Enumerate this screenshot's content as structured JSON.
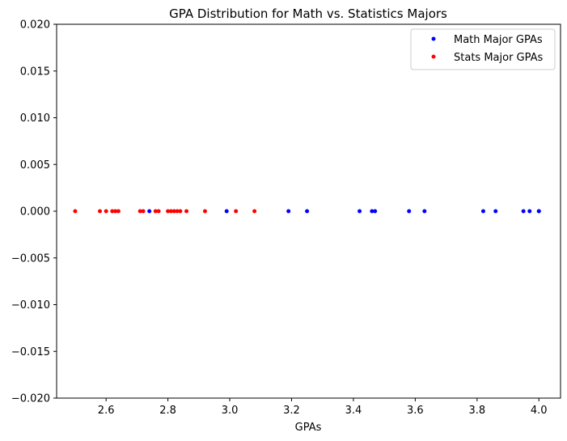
{
  "chart_data": {
    "type": "scatter",
    "title": "GPA Distribution for Math vs. Statistics Majors",
    "xlabel": "GPAs",
    "ylabel": "",
    "xlim": [
      2.44,
      4.07
    ],
    "ylim": [
      -0.02,
      0.02
    ],
    "x_ticks": [
      2.6,
      2.8,
      3.0,
      3.2,
      3.4,
      3.6,
      3.8,
      4.0
    ],
    "x_tick_labels": [
      "2.6",
      "2.8",
      "3.0",
      "3.2",
      "3.4",
      "3.6",
      "3.8",
      "4.0"
    ],
    "y_ticks": [
      0.02,
      0.015,
      0.01,
      0.005,
      0.0,
      -0.005,
      -0.01,
      -0.015,
      -0.02
    ],
    "y_tick_labels": [
      "0.020",
      "0.015",
      "0.010",
      "0.005",
      "0.000",
      "−0.005",
      "−0.010",
      "−0.015",
      "−0.020"
    ],
    "grid": false,
    "legend_position": "top-right",
    "series": [
      {
        "name": "Math Major GPAs",
        "color": "#0000ff",
        "x": [
          2.74,
          2.99,
          3.19,
          3.25,
          3.42,
          3.46,
          3.47,
          3.58,
          3.63,
          3.82,
          3.86,
          3.95,
          3.97,
          4.0,
          4.0
        ],
        "y": [
          0,
          0,
          0,
          0,
          0,
          0,
          0,
          0,
          0,
          0,
          0,
          0,
          0,
          0,
          0
        ]
      },
      {
        "name": "Stats Major GPAs",
        "color": "#ff0000",
        "x": [
          2.5,
          2.58,
          2.6,
          2.62,
          2.63,
          2.64,
          2.71,
          2.72,
          2.76,
          2.77,
          2.8,
          2.81,
          2.82,
          2.83,
          2.84,
          2.86,
          2.92,
          3.02,
          3.08
        ],
        "y": [
          0,
          0,
          0,
          0,
          0,
          0,
          0,
          0,
          0,
          0,
          0,
          0,
          0,
          0,
          0,
          0,
          0,
          0,
          0
        ]
      }
    ]
  }
}
